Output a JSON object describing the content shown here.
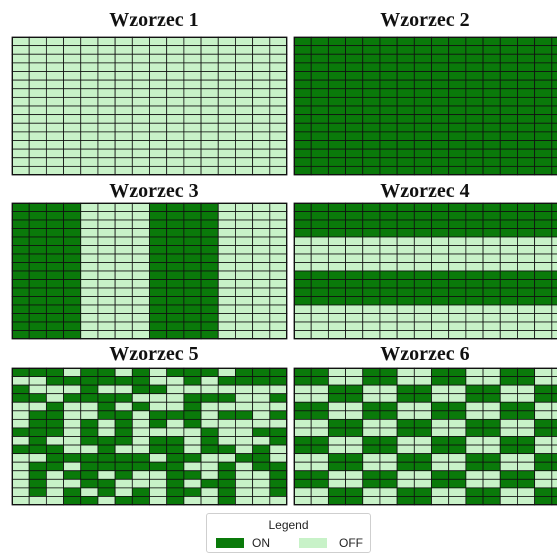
{
  "grid": {
    "rows": 16,
    "cols": 16,
    "on_color": "#0a7a0a",
    "off_color": "#c8f2c8",
    "line_color": "#111111"
  },
  "panels": [
    {
      "title": "Wzorzec 1",
      "pattern": "all-off"
    },
    {
      "title": "Wzorzec 2",
      "pattern": "all-on"
    },
    {
      "title": "Wzorzec 3",
      "pattern": "vertical-stripes"
    },
    {
      "title": "Wzorzec 4",
      "pattern": "horizontal-stripes"
    },
    {
      "title": "Wzorzec 5",
      "pattern": "random"
    },
    {
      "title": "Wzorzec 6",
      "pattern": "checkerboard"
    }
  ],
  "legend": {
    "title": "Legend",
    "items": [
      {
        "label": "ON",
        "color": "#0a7a0a"
      },
      {
        "label": "OFF",
        "color": "#c8f2c8"
      }
    ]
  }
}
